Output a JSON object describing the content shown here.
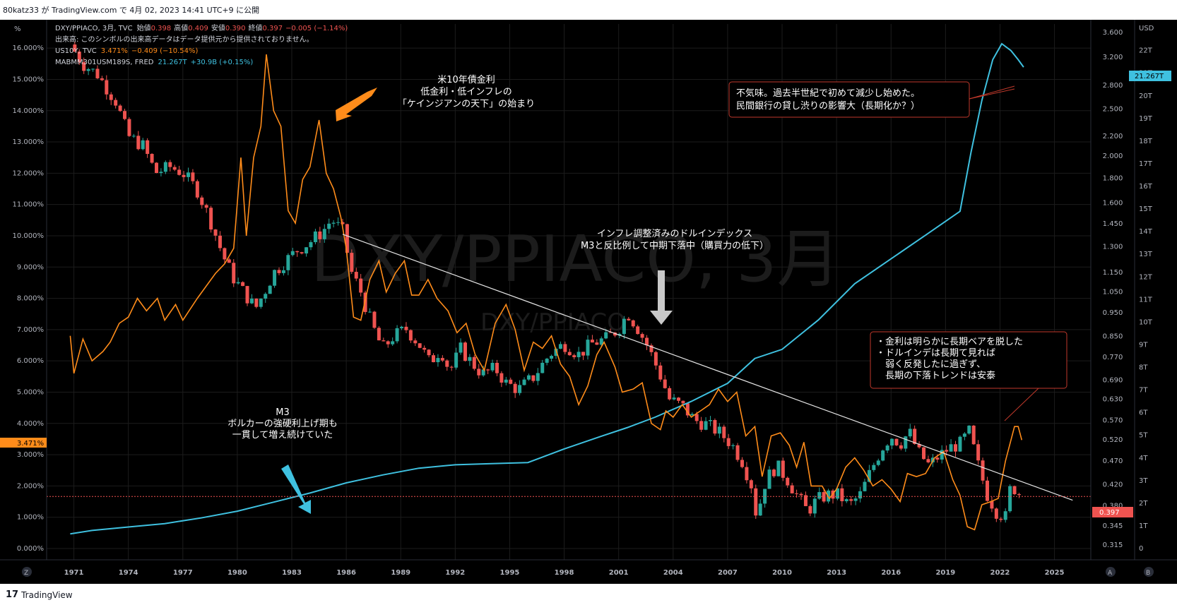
{
  "publish_line": "80katz33 が TradingView.com で 4月 02, 2023 14:41 UTC+9 に公開",
  "brand": {
    "logo": "𝟭𝟳",
    "name": "TradingView"
  },
  "colors": {
    "bg": "#000000",
    "grid": "#1c1c1c",
    "axis_text": "#b2b5be",
    "up": "#26a69a",
    "down": "#ef5350",
    "us10y": "#ff8c1a",
    "m3": "#3fc1e0",
    "trend": "#e6e6e6",
    "note_border": "#c0392b"
  },
  "legend": {
    "dxy": {
      "name": "DXY/PPIACO, 3月, TVC",
      "o_label": "始値",
      "o": "0.398",
      "h_label": "高値",
      "h": "0.409",
      "l_label": "安値",
      "l": "0.390",
      "c_label": "終値",
      "c": "0.397",
      "chg": "−0.005 (−1.14%)"
    },
    "volume_note": "出来高: このシンボルの出来高データはデータ提供元から提供されておりません。",
    "us10y": {
      "name": "US10Y, TVC",
      "value": "3.471%",
      "chg": "−0.409 (−10.54%)"
    },
    "m3": {
      "name": "MABMM301USM189S, FRED",
      "value": "21.267T",
      "chg": "+30.9B (+0.15%)"
    }
  },
  "watermark": {
    "big": "DXY/PPIACO, 3月",
    "small": "DXY/PPIACO"
  },
  "left_axis": {
    "unit": "%",
    "ticks": [
      "16.000%",
      "15.000%",
      "14.000%",
      "13.000%",
      "12.000%",
      "11.000%",
      "10.000%",
      "9.000%",
      "8.000%",
      "7.000%",
      "6.000%",
      "5.000%",
      "4.000%",
      "3.000%",
      "2.000%",
      "1.000%",
      "0.000%"
    ],
    "badge": "3.471%"
  },
  "ratio_axis": {
    "ticks": [
      "3.600",
      "3.200",
      "2.800",
      "2.500",
      "2.200",
      "2.000",
      "1.800",
      "1.600",
      "1.450",
      "1.300",
      "1.150",
      "1.050",
      "0.950",
      "0.850",
      "0.770",
      "0.690",
      "0.630",
      "0.570",
      "0.520",
      "0.470",
      "0.420",
      "0.380",
      "0.345",
      "0.315"
    ],
    "badge": "0.397"
  },
  "usd_axis": {
    "unit": "USD",
    "ticks": [
      "22T",
      "21T",
      "20T",
      "19T",
      "18T",
      "17T",
      "16T",
      "15T",
      "14T",
      "13T",
      "12T",
      "11T",
      "10T",
      "9T",
      "8T",
      "7T",
      "6T",
      "5T",
      "4T",
      "3T",
      "2T",
      "1T",
      "0"
    ],
    "badge": "21.267T"
  },
  "x_axis": {
    "ticks": [
      "1971",
      "1974",
      "1977",
      "1980",
      "1983",
      "1986",
      "1989",
      "1992",
      "1995",
      "1998",
      "2001",
      "2004",
      "2007",
      "2010",
      "2013",
      "2016",
      "2019",
      "2022",
      "2025"
    ]
  },
  "corner_labels": {
    "left": "Z",
    "right_a": "A",
    "right_b": "B"
  },
  "annotations": {
    "us10y_note": [
      "米10年債金利",
      "低金利・低インフレの",
      "「ケインジアンの天下」の始まり"
    ],
    "dxy_note": [
      "インフレ調整済みのドルインデックス",
      "M3と反比例して中期下落中（購買力の低下）"
    ],
    "m3_note": [
      "M3",
      "ボルカーの強硬利上げ期も",
      "一貫して増え続けていた"
    ],
    "box_top": [
      "不気味。過去半世紀で初めて減少し始めた。",
      "民間銀行の貸し渋りの影響大（長期化か？）"
    ],
    "box_bottom": [
      "・金利は明らかに長期ベアを脱した",
      "・ドルインデは長期て見れば",
      "　弱く反発したに過ぎず、",
      "　長期の下落トレンドは安泰"
    ]
  },
  "chart_data": {
    "type": "line",
    "title": "DXY/PPIACO, 3月",
    "x_range": [
      1969.5,
      2027
    ],
    "series": [
      {
        "name": "US10Y",
        "axis": "left_percent",
        "ylim": [
          0,
          16.5
        ],
        "points": [
          [
            1970.8,
            6.8
          ],
          [
            1971,
            5.6
          ],
          [
            1971.5,
            6.7
          ],
          [
            1972,
            6.0
          ],
          [
            1972.6,
            6.3
          ],
          [
            1973,
            6.6
          ],
          [
            1973.5,
            7.2
          ],
          [
            1974,
            7.4
          ],
          [
            1974.5,
            8.0
          ],
          [
            1975,
            7.6
          ],
          [
            1975.6,
            8.0
          ],
          [
            1976,
            7.3
          ],
          [
            1976.6,
            7.8
          ],
          [
            1977,
            7.3
          ],
          [
            1977.8,
            8.0
          ],
          [
            1978.3,
            8.4
          ],
          [
            1978.8,
            8.8
          ],
          [
            1979.3,
            9.1
          ],
          [
            1979.8,
            9.6
          ],
          [
            1980.2,
            12.5
          ],
          [
            1980.5,
            10.0
          ],
          [
            1980.9,
            12.5
          ],
          [
            1981.3,
            13.5
          ],
          [
            1981.6,
            15.8
          ],
          [
            1982,
            14.0
          ],
          [
            1982.4,
            13.5
          ],
          [
            1982.8,
            10.8
          ],
          [
            1983.2,
            10.4
          ],
          [
            1983.6,
            11.8
          ],
          [
            1984,
            12.2
          ],
          [
            1984.5,
            13.7
          ],
          [
            1984.9,
            12.0
          ],
          [
            1985.3,
            11.5
          ],
          [
            1985.7,
            10.6
          ],
          [
            1986,
            9.6
          ],
          [
            1986.4,
            7.4
          ],
          [
            1986.8,
            7.3
          ],
          [
            1987.3,
            8.6
          ],
          [
            1987.8,
            9.2
          ],
          [
            1988.2,
            8.2
          ],
          [
            1988.7,
            8.8
          ],
          [
            1989.2,
            9.2
          ],
          [
            1989.6,
            8.1
          ],
          [
            1990,
            8.1
          ],
          [
            1990.5,
            8.6
          ],
          [
            1991,
            8.0
          ],
          [
            1991.6,
            7.6
          ],
          [
            1992.1,
            6.9
          ],
          [
            1992.6,
            7.2
          ],
          [
            1993.1,
            6.2
          ],
          [
            1993.6,
            5.7
          ],
          [
            1994.2,
            7.2
          ],
          [
            1994.8,
            7.8
          ],
          [
            1995.3,
            7.0
          ],
          [
            1995.8,
            5.7
          ],
          [
            1996.3,
            6.6
          ],
          [
            1996.8,
            6.4
          ],
          [
            1997.3,
            6.8
          ],
          [
            1997.8,
            5.9
          ],
          [
            1998.3,
            5.5
          ],
          [
            1998.8,
            4.6
          ],
          [
            1999.3,
            5.2
          ],
          [
            1999.8,
            6.2
          ],
          [
            2000.2,
            6.6
          ],
          [
            2000.8,
            5.8
          ],
          [
            2001.2,
            5.0
          ],
          [
            2001.8,
            5.1
          ],
          [
            2002.3,
            5.3
          ],
          [
            2002.8,
            4.0
          ],
          [
            2003.3,
            3.8
          ],
          [
            2003.6,
            4.4
          ],
          [
            2004,
            4.2
          ],
          [
            2004.5,
            4.6
          ],
          [
            2005,
            4.2
          ],
          [
            2005.5,
            4.4
          ],
          [
            2006,
            4.6
          ],
          [
            2006.5,
            5.1
          ],
          [
            2007,
            4.7
          ],
          [
            2007.5,
            5.0
          ],
          [
            2008,
            3.6
          ],
          [
            2008.5,
            3.9
          ],
          [
            2008.9,
            2.3
          ],
          [
            2009.4,
            3.6
          ],
          [
            2009.9,
            3.7
          ],
          [
            2010.4,
            3.3
          ],
          [
            2010.8,
            2.6
          ],
          [
            2011.2,
            3.4
          ],
          [
            2011.6,
            2.0
          ],
          [
            2012.2,
            2.0
          ],
          [
            2012.6,
            1.6
          ],
          [
            2013,
            1.9
          ],
          [
            2013.5,
            2.6
          ],
          [
            2014,
            2.9
          ],
          [
            2014.5,
            2.5
          ],
          [
            2015,
            2.0
          ],
          [
            2015.5,
            2.2
          ],
          [
            2016,
            1.9
          ],
          [
            2016.5,
            1.5
          ],
          [
            2016.9,
            2.4
          ],
          [
            2017.4,
            2.3
          ],
          [
            2017.9,
            2.4
          ],
          [
            2018.4,
            2.9
          ],
          [
            2018.9,
            3.1
          ],
          [
            2019.4,
            2.2
          ],
          [
            2019.8,
            1.7
          ],
          [
            2020.2,
            0.7
          ],
          [
            2020.6,
            0.6
          ],
          [
            2021,
            1.4
          ],
          [
            2021.5,
            1.5
          ],
          [
            2021.9,
            1.6
          ],
          [
            2022.3,
            2.8
          ],
          [
            2022.8,
            3.9
          ],
          [
            2023.0,
            3.9
          ],
          [
            2023.2,
            3.47
          ]
        ]
      },
      {
        "name": "M3",
        "axis": "right_usd",
        "ylim": [
          0,
          22.8
        ],
        "points": [
          [
            1970.8,
            0.65
          ],
          [
            1972,
            0.8
          ],
          [
            1974,
            0.95
          ],
          [
            1976,
            1.1
          ],
          [
            1978,
            1.35
          ],
          [
            1980,
            1.65
          ],
          [
            1982,
            2.05
          ],
          [
            1984,
            2.45
          ],
          [
            1986,
            2.9
          ],
          [
            1988,
            3.25
          ],
          [
            1990,
            3.55
          ],
          [
            1992,
            3.7
          ],
          [
            1994,
            3.75
          ],
          [
            1996,
            3.8
          ],
          [
            1998,
            4.4
          ],
          [
            2000,
            4.95
          ],
          [
            2001.5,
            5.35
          ],
          [
            2003,
            5.8
          ],
          [
            2005,
            6.5
          ],
          [
            2007,
            7.3
          ],
          [
            2008.5,
            8.4
          ],
          [
            2010,
            8.8
          ],
          [
            2012,
            10.1
          ],
          [
            2014,
            11.7
          ],
          [
            2016,
            12.8
          ],
          [
            2018,
            13.9
          ],
          [
            2019.8,
            14.9
          ],
          [
            2020.4,
            17.5
          ],
          [
            2021,
            19.8
          ],
          [
            2021.6,
            21.6
          ],
          [
            2022.1,
            22.3
          ],
          [
            2022.6,
            22.0
          ],
          [
            2023.0,
            21.6
          ],
          [
            2023.3,
            21.27
          ]
        ]
      },
      {
        "name": "DXY/PPIACO",
        "axis": "right_ratio",
        "ylim": [
          0.31,
          3.6
        ],
        "scale": "log",
        "type": "candlestick",
        "points": [
          [
            1970.8,
            3.4
          ],
          [
            1971.5,
            3.1
          ],
          [
            1972.3,
            2.95
          ],
          [
            1973.3,
            2.6
          ],
          [
            1974,
            2.2
          ],
          [
            1974.8,
            2.1
          ],
          [
            1975.5,
            1.85
          ],
          [
            1976.3,
            1.9
          ],
          [
            1977,
            1.85
          ],
          [
            1977.8,
            1.7
          ],
          [
            1978.5,
            1.48
          ],
          [
            1979.2,
            1.25
          ],
          [
            1979.8,
            1.12
          ],
          [
            1980.5,
            1.03
          ],
          [
            1981,
            0.97
          ],
          [
            1981.5,
            1.05
          ],
          [
            1982,
            1.15
          ],
          [
            1982.7,
            1.22
          ],
          [
            1983.3,
            1.28
          ],
          [
            1984,
            1.33
          ],
          [
            1984.7,
            1.4
          ],
          [
            1985.2,
            1.48
          ],
          [
            1985.8,
            1.4
          ],
          [
            1986.3,
            1.15
          ],
          [
            1986.8,
            1.05
          ],
          [
            1987.4,
            0.9
          ],
          [
            1988,
            0.8
          ],
          [
            1988.6,
            0.85
          ],
          [
            1989.3,
            0.88
          ],
          [
            1990,
            0.82
          ],
          [
            1990.6,
            0.75
          ],
          [
            1991.2,
            0.8
          ],
          [
            1991.7,
            0.72
          ],
          [
            1992.3,
            0.8
          ],
          [
            1992.9,
            0.75
          ],
          [
            1993.5,
            0.71
          ],
          [
            1994.2,
            0.73
          ],
          [
            1994.8,
            0.68
          ],
          [
            1995.5,
            0.66
          ],
          [
            1996.3,
            0.7
          ],
          [
            1997.2,
            0.78
          ],
          [
            1998,
            0.82
          ],
          [
            1998.8,
            0.78
          ],
          [
            1999.5,
            0.82
          ],
          [
            2000.3,
            0.84
          ],
          [
            2001,
            0.88
          ],
          [
            2001.5,
            0.95
          ],
          [
            2002,
            0.89
          ],
          [
            2002.6,
            0.81
          ],
          [
            2003.2,
            0.72
          ],
          [
            2003.8,
            0.63
          ],
          [
            2004.5,
            0.61
          ],
          [
            2005.2,
            0.57
          ],
          [
            2005.8,
            0.56
          ],
          [
            2006.5,
            0.54
          ],
          [
            2007.2,
            0.51
          ],
          [
            2007.8,
            0.47
          ],
          [
            2008.3,
            0.42
          ],
          [
            2008.6,
            0.36
          ],
          [
            2009.1,
            0.43
          ],
          [
            2009.7,
            0.46
          ],
          [
            2010.3,
            0.43
          ],
          [
            2010.8,
            0.4
          ],
          [
            2011.4,
            0.37
          ],
          [
            2011.9,
            0.39
          ],
          [
            2012.5,
            0.4
          ],
          [
            2013.1,
            0.4
          ],
          [
            2013.7,
            0.38
          ],
          [
            2014.3,
            0.4
          ],
          [
            2014.9,
            0.45
          ],
          [
            2015.5,
            0.5
          ],
          [
            2016,
            0.53
          ],
          [
            2016.5,
            0.51
          ],
          [
            2017,
            0.54
          ],
          [
            2017.5,
            0.49
          ],
          [
            2018.1,
            0.46
          ],
          [
            2018.6,
            0.48
          ],
          [
            2019.2,
            0.5
          ],
          [
            2019.8,
            0.51
          ],
          [
            2020.3,
            0.54
          ],
          [
            2020.8,
            0.46
          ],
          [
            2021.3,
            0.4
          ],
          [
            2021.8,
            0.37
          ],
          [
            2022.3,
            0.36
          ],
          [
            2022.6,
            0.42
          ],
          [
            2023.2,
            0.397
          ]
        ]
      },
      {
        "name": "trend",
        "axis": "right_ratio",
        "points": [
          [
            1985.8,
            1.38
          ],
          [
            2026,
            0.39
          ]
        ]
      }
    ]
  }
}
